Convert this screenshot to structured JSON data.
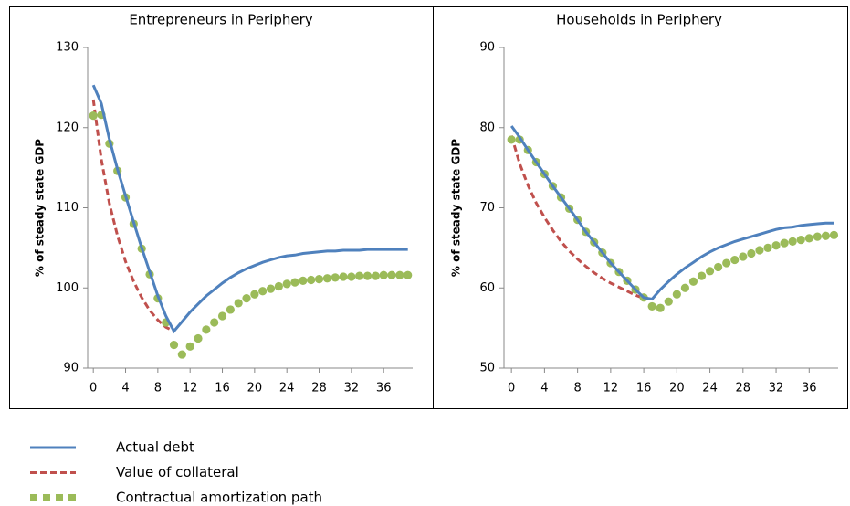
{
  "chart_data": [
    {
      "type": "line",
      "title": "Entrepreneurs in Periphery",
      "y_label": "% of steady state GDP",
      "x": [
        0,
        1,
        2,
        3,
        4,
        5,
        6,
        7,
        8,
        9,
        10,
        11,
        12,
        13,
        14,
        15,
        16,
        17,
        18,
        19,
        20,
        21,
        22,
        23,
        24,
        25,
        26,
        27,
        28,
        29,
        30,
        31,
        32,
        33,
        34,
        35,
        36,
        37,
        38,
        39
      ],
      "xlim": [
        -0.7,
        39.6
      ],
      "xticks": [
        0,
        4,
        8,
        12,
        16,
        20,
        24,
        28,
        32,
        36
      ],
      "ylim": [
        90,
        130
      ],
      "yticks": [
        90,
        100,
        110,
        120,
        130
      ],
      "series": [
        {
          "name": "Actual debt",
          "color": "#4f81bd",
          "style": "solid",
          "values": [
            125.3,
            123,
            118.5,
            114.8,
            111.5,
            108.2,
            105,
            102,
            99,
            96.5,
            94.6,
            95.8,
            97,
            98,
            99,
            99.8,
            100.6,
            101.3,
            101.9,
            102.4,
            102.8,
            103.2,
            103.5,
            103.8,
            104,
            104.1,
            104.3,
            104.4,
            104.5,
            104.6,
            104.6,
            104.7,
            104.7,
            104.7,
            104.8,
            104.8,
            104.8,
            104.8,
            104.8,
            104.8
          ]
        },
        {
          "name": "Value of collateral",
          "color": "#c0504d",
          "style": "dashed",
          "values": [
            123.5,
            116,
            110.5,
            106.5,
            103.3,
            100.8,
            98.8,
            97.2,
            96,
            95.1,
            94.6,
            null,
            null,
            null,
            null,
            null,
            null,
            null,
            null,
            null,
            null,
            null,
            null,
            null,
            null,
            null,
            null,
            null,
            null,
            null,
            null,
            null,
            null,
            null,
            null,
            null,
            null,
            null,
            null,
            null
          ]
        },
        {
          "name": "Contractual amortization path",
          "color": "#9bbb59",
          "style": "dots",
          "values": [
            121.5,
            121.6,
            118,
            114.6,
            111.3,
            108,
            104.9,
            101.7,
            98.7,
            95.7,
            92.9,
            91.7,
            92.7,
            93.7,
            94.8,
            95.7,
            96.5,
            97.3,
            98.1,
            98.7,
            99.2,
            99.6,
            99.9,
            100.2,
            100.5,
            100.7,
            100.9,
            101,
            101.1,
            101.2,
            101.3,
            101.4,
            101.4,
            101.5,
            101.5,
            101.5,
            101.6,
            101.6,
            101.6,
            101.6
          ]
        }
      ]
    },
    {
      "type": "line",
      "title": "Households in Periphery",
      "y_label": "% of steady state GDP",
      "x": [
        0,
        1,
        2,
        3,
        4,
        5,
        6,
        7,
        8,
        9,
        10,
        11,
        12,
        13,
        14,
        15,
        16,
        17,
        18,
        19,
        20,
        21,
        22,
        23,
        24,
        25,
        26,
        27,
        28,
        29,
        30,
        31,
        32,
        33,
        34,
        35,
        36,
        37,
        38,
        39
      ],
      "xlim": [
        -0.9,
        39.5
      ],
      "xticks": [
        0,
        4,
        8,
        12,
        16,
        20,
        24,
        28,
        32,
        36
      ],
      "ylim": [
        50,
        90
      ],
      "yticks": [
        50,
        60,
        70,
        80,
        90
      ],
      "series": [
        {
          "name": "Actual debt",
          "color": "#4f81bd",
          "style": "solid",
          "values": [
            80.2,
            78.8,
            77.2,
            75.7,
            74.2,
            72.7,
            71.3,
            69.9,
            68.5,
            67,
            65.7,
            64.4,
            63.1,
            62,
            60.9,
            59.8,
            58.8,
            58.6,
            59.8,
            60.8,
            61.7,
            62.5,
            63.2,
            63.9,
            64.5,
            65,
            65.4,
            65.8,
            66.1,
            66.4,
            66.7,
            67,
            67.3,
            67.5,
            67.6,
            67.8,
            67.9,
            68,
            68.1,
            68.1
          ]
        },
        {
          "name": "Value of collateral",
          "color": "#c0504d",
          "style": "dashed",
          "values": [
            79,
            75.5,
            72.8,
            70.6,
            68.8,
            67.2,
            65.8,
            64.6,
            63.6,
            62.7,
            61.9,
            61.2,
            60.6,
            60.1,
            59.6,
            59.1,
            58.7,
            null,
            null,
            null,
            null,
            null,
            null,
            null,
            null,
            null,
            null,
            null,
            null,
            null,
            null,
            null,
            null,
            null,
            null,
            null,
            null,
            null,
            null,
            null
          ]
        },
        {
          "name": "Contractual amortization path",
          "color": "#9bbb59",
          "style": "dots",
          "values": [
            78.5,
            78.5,
            77.2,
            75.7,
            74.2,
            72.7,
            71.3,
            69.9,
            68.5,
            67,
            65.7,
            64.4,
            63.1,
            62,
            60.9,
            59.8,
            58.8,
            57.7,
            57.5,
            58.3,
            59.2,
            60,
            60.8,
            61.5,
            62.1,
            62.6,
            63.1,
            63.5,
            63.9,
            64.3,
            64.7,
            65,
            65.3,
            65.6,
            65.8,
            66,
            66.2,
            66.4,
            66.5,
            66.6
          ]
        }
      ]
    }
  ]
}
